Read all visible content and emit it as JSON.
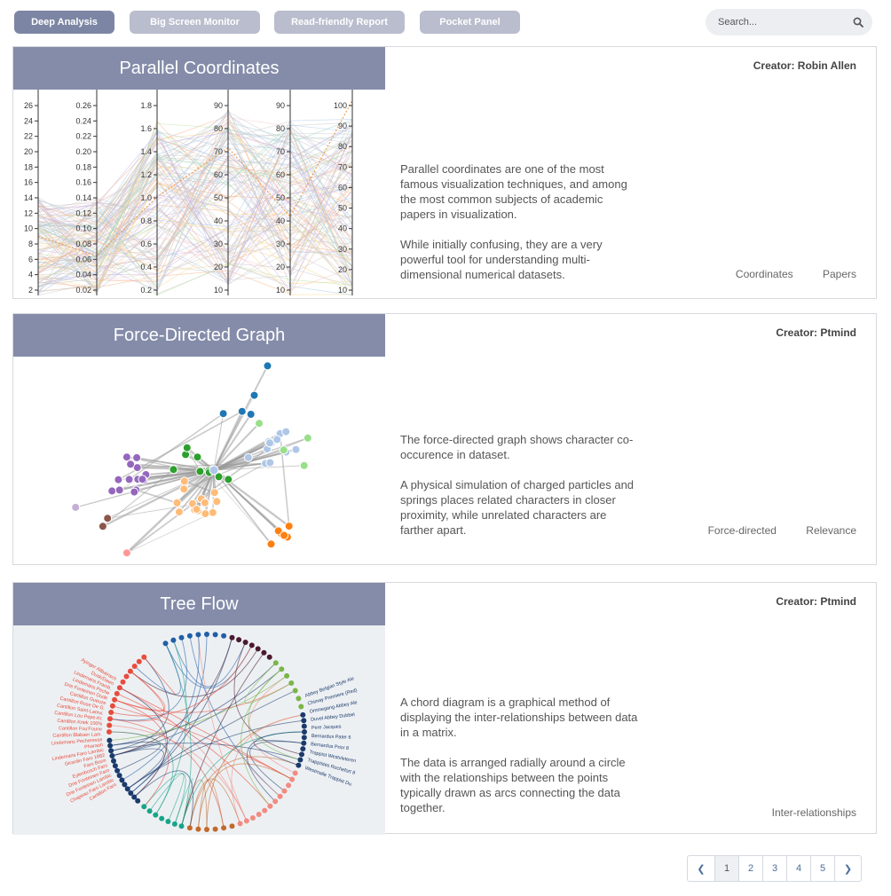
{
  "nav": {
    "tabs": [
      {
        "label": "Deep Analysis",
        "active": true
      },
      {
        "label": "Big Screen Monitor",
        "active": false
      },
      {
        "label": "Read-friendly Report",
        "active": false
      },
      {
        "label": "Pocket Panel",
        "active": false
      }
    ],
    "search_placeholder": "Search..."
  },
  "cards": [
    {
      "title": "Parallel Coordinates",
      "creator": "Creator: Robin Allen",
      "description": [
        "Parallel coordinates are one of the most famous visualization techniques, and among the most common subjects of academic papers in visualization.",
        "While initially confusing, they are a very powerful tool for understanding multi-dimensional numerical datasets."
      ],
      "tags": [
        "Coordinates",
        "Papers"
      ]
    },
    {
      "title": "Force-Directed Graph",
      "creator": "Creator: Ptmind",
      "description": [
        "The force-directed graph shows character co-occurence in dataset.",
        "A physical simulation of charged particles and springs places related characters in closer proximity, while unrelated characters are farther apart."
      ],
      "tags": [
        "Force-directed",
        "Relevance"
      ]
    },
    {
      "title": "Tree Flow",
      "creator": "Creator: Ptmind",
      "description": [
        "A chord diagram is a graphical method of displaying the inter-relationships between data in a matrix.",
        "The data is arranged radially around a circle with the relationships between the points typically drawn as arcs connecting the data together."
      ],
      "tags": [
        "Inter-relationships"
      ]
    }
  ],
  "parallel_axes": [
    {
      "ticks": [
        "26",
        "24",
        "22",
        "20",
        "18",
        "16",
        "14",
        "12",
        "10",
        "8",
        "6",
        "4",
        "2"
      ]
    },
    {
      "ticks": [
        "0.26",
        "0.24",
        "0.22",
        "0.20",
        "0.18",
        "0.16",
        "0.14",
        "0.12",
        "0.10",
        "0.08",
        "0.06",
        "0.04",
        "0.02"
      ]
    },
    {
      "ticks": [
        "1.8",
        "1.6",
        "1.4",
        "1.2",
        "1.0",
        "0.8",
        "0.6",
        "0.4",
        "0.2"
      ]
    },
    {
      "ticks": [
        "90",
        "80",
        "70",
        "60",
        "50",
        "40",
        "30",
        "20",
        "10"
      ]
    },
    {
      "ticks": [
        "90",
        "80",
        "70",
        "60",
        "50",
        "40",
        "30",
        "20",
        "10"
      ]
    },
    {
      "ticks": [
        "100",
        "90",
        "80",
        "70",
        "60",
        "50",
        "40",
        "30",
        "20",
        "10"
      ]
    }
  ],
  "chord_labels": {
    "left": [
      "Ayinger Altbairisch",
      "Dusk/Dawn",
      "Lindemans Framb.",
      "Lindemans Peche",
      "Drie Fonteinen Oude",
      "Cantillon Gueuze",
      "Cantillon Rose De G.",
      "Cantillon Saint-Lamvi.",
      "Cantillon Lou Pepe-Kr.",
      "Cantillon Kriek 100%",
      "Cantillon Fou'Foune",
      "Cantillon Blabaer Lam.",
      "Lindemans Pecheresse",
      "Pharaoh",
      "Lindemans Faro Lambic",
      "Girardin Faro 1882",
      "Faro Boon",
      "Eylenbosch Faro",
      "Drie Fonteinen Faro",
      "Drie Fonteinen Lambic",
      "Chapeau Faro Lambic",
      "Cantillon Faro"
    ],
    "right": [
      "Abbey Belgian Style Ale",
      "Chimay Premiere (Red)",
      "Ommegang Abbey Ale",
      "Duvel Abbey Dubbel",
      "Pere Jacques",
      "Bernardus Pater 6",
      "Bernardus Prior 8",
      "Trappist Westvleteren",
      "Trappistes Rochefort 8",
      "Westmalle Trappist Du."
    ]
  },
  "pagination": {
    "prev_glyph": "❮",
    "next_glyph": "❯",
    "pages": [
      "1",
      "2",
      "3",
      "4",
      "5"
    ],
    "active": "1"
  },
  "colors": {
    "tab_active": "#7c86a4",
    "tab_inactive": "#b9bdcd",
    "title_bar": "#848ca9",
    "search_bg": "#eceef1",
    "link": "#4a6f9a"
  }
}
